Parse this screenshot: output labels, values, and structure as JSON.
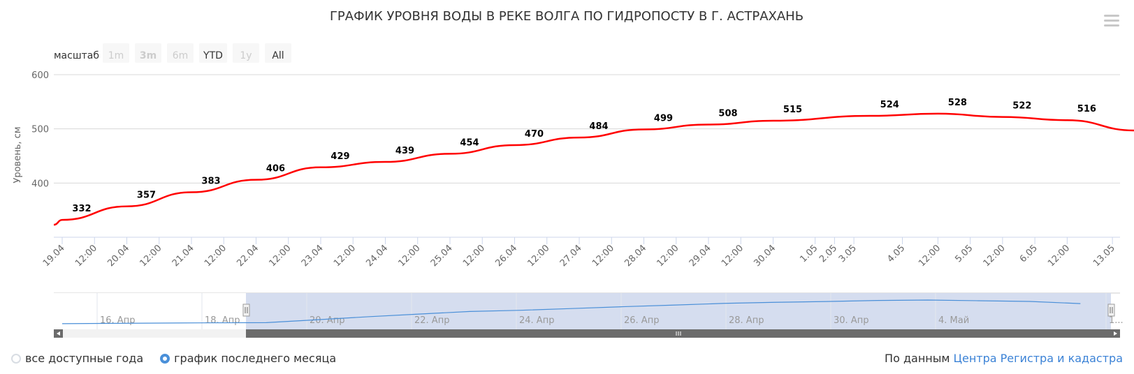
{
  "chart_data": {
    "type": "line",
    "title": "ГРАФИК УРОВНЯ ВОДЫ В РЕКЕ ВОЛГА ПО ГИДРОПОСТУ В Г. АСТРАХАНЬ",
    "ylabel": "Уровень, см",
    "ylim": [
      300,
      600
    ],
    "yticks": [
      "600",
      "500",
      "400"
    ],
    "grid": true,
    "line_color": "#ff0000",
    "x_tick_labels": [
      "19.04",
      "12:00",
      "20.04",
      "12:00",
      "21.04",
      "12:00",
      "22.04",
      "12:00",
      "23.04",
      "12:00",
      "24.04",
      "12:00",
      "25.04",
      "12:00",
      "26.04",
      "12:00",
      "27.04",
      "12:00",
      "28.04",
      "12:00",
      "29.04",
      "12:00",
      "30.04",
      "1.05",
      "2.05",
      "3.05",
      "4.05",
      "12:00",
      "5.05",
      "12:00",
      "6.05",
      "12:00",
      "13.05"
    ],
    "series": [
      {
        "x": [
          "19.04",
          "20.04",
          "21.04",
          "22.04",
          "23.04",
          "24.04",
          "25.04",
          "26.04",
          "27.04",
          "28.04",
          "29.04",
          "30.04",
          "1.05",
          "2.05",
          "3.05",
          "4.05",
          "5.05"
        ],
        "values": [
          332,
          357,
          383,
          406,
          429,
          439,
          454,
          470,
          484,
          499,
          508,
          515,
          524,
          528,
          522,
          516,
          497
        ],
        "extra_points": [
          {
            "x": "18.04",
            "value": 323
          }
        ]
      }
    ],
    "navigator": {
      "labels": [
        "16. Апр",
        "18. Апр",
        "20. Апр",
        "22. Апр",
        "24. Апр",
        "26. Апр",
        "28. Апр",
        "30. Апр",
        "4. Май",
        "1..."
      ],
      "line_color": "#4a8fd8",
      "selection_color": "#d3dbee"
    }
  },
  "range_selector": {
    "label": "масштаб",
    "buttons": [
      {
        "label": "1m",
        "state": "disabled"
      },
      {
        "label": "3m",
        "state": "disabled-bold"
      },
      {
        "label": "6m",
        "state": "disabled"
      },
      {
        "label": "YTD",
        "state": "enabled"
      },
      {
        "label": "1y",
        "state": "disabled"
      },
      {
        "label": "All",
        "state": "enabled"
      }
    ]
  },
  "menu_icon": "hamburger-icon",
  "footer": {
    "radio_all": "все доступные года",
    "radio_month": "график последнего месяца",
    "selected": "radio_month",
    "source_prefix": "По данным",
    "source_link": "Центра Регистра и кадастра",
    "link_color": "#3b82d6"
  }
}
